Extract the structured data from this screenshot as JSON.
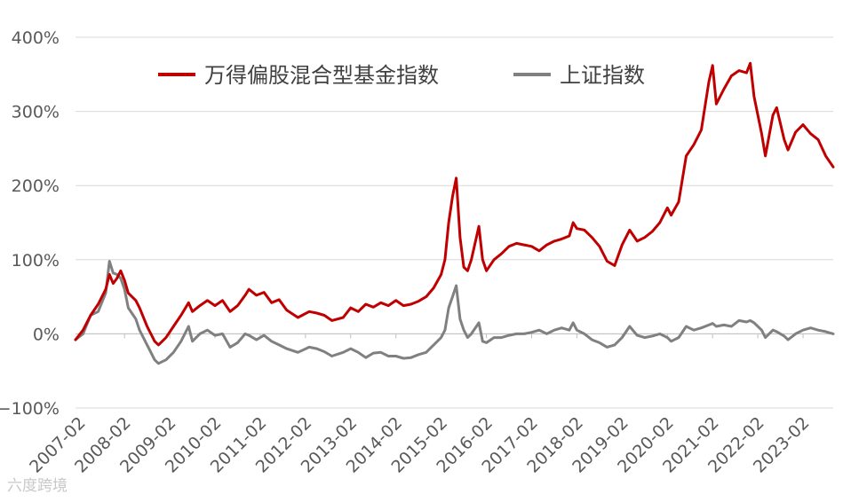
{
  "chart_data": {
    "type": "line",
    "title": "",
    "xlabel": "",
    "ylabel": "",
    "y_unit": "%",
    "ylim": [
      -100,
      400
    ],
    "yticks": [
      "400%",
      "300%",
      "200%",
      "100%",
      "0%",
      "−100%"
    ],
    "ytick_values": [
      400,
      300,
      200,
      100,
      0,
      -100
    ],
    "xlim": [
      "2007-01",
      "2023-10"
    ],
    "xticks": [
      "2007-02",
      "2008-02",
      "2009-02",
      "2010-02",
      "2011-02",
      "2012-02",
      "2013-02",
      "2014-02",
      "2015-02",
      "2016-02",
      "2017-02",
      "2018-02",
      "2019-02",
      "2020-02",
      "2021-02",
      "2022-02",
      "2023-02"
    ],
    "grid": true,
    "legend_position": "top",
    "series": [
      {
        "name": "万得偏股混合型基金指数",
        "color": "#c00000",
        "points": [
          [
            "2007-01",
            -8
          ],
          [
            "2007-03",
            5
          ],
          [
            "2007-05",
            25
          ],
          [
            "2007-07",
            40
          ],
          [
            "2007-09",
            60
          ],
          [
            "2007-10",
            80
          ],
          [
            "2007-11",
            68
          ],
          [
            "2007-12",
            75
          ],
          [
            "2008-01",
            85
          ],
          [
            "2008-02",
            72
          ],
          [
            "2008-03",
            55
          ],
          [
            "2008-05",
            45
          ],
          [
            "2008-06",
            35
          ],
          [
            "2008-08",
            10
          ],
          [
            "2008-10",
            -10
          ],
          [
            "2008-11",
            -15
          ],
          [
            "2009-01",
            -5
          ],
          [
            "2009-03",
            10
          ],
          [
            "2009-05",
            25
          ],
          [
            "2009-07",
            42
          ],
          [
            "2009-08",
            30
          ],
          [
            "2009-10",
            38
          ],
          [
            "2009-12",
            45
          ],
          [
            "2010-02",
            38
          ],
          [
            "2010-04",
            45
          ],
          [
            "2010-06",
            30
          ],
          [
            "2010-08",
            38
          ],
          [
            "2010-10",
            52
          ],
          [
            "2010-11",
            60
          ],
          [
            "2011-01",
            52
          ],
          [
            "2011-03",
            56
          ],
          [
            "2011-05",
            42
          ],
          [
            "2011-07",
            46
          ],
          [
            "2011-09",
            32
          ],
          [
            "2011-12",
            22
          ],
          [
            "2012-03",
            30
          ],
          [
            "2012-05",
            28
          ],
          [
            "2012-07",
            25
          ],
          [
            "2012-09",
            18
          ],
          [
            "2012-12",
            22
          ],
          [
            "2013-02",
            35
          ],
          [
            "2013-04",
            30
          ],
          [
            "2013-06",
            40
          ],
          [
            "2013-08",
            36
          ],
          [
            "2013-10",
            42
          ],
          [
            "2013-12",
            38
          ],
          [
            "2014-02",
            45
          ],
          [
            "2014-04",
            38
          ],
          [
            "2014-06",
            40
          ],
          [
            "2014-08",
            44
          ],
          [
            "2014-10",
            50
          ],
          [
            "2014-12",
            62
          ],
          [
            "2015-02",
            80
          ],
          [
            "2015-03",
            100
          ],
          [
            "2015-04",
            150
          ],
          [
            "2015-05",
            185
          ],
          [
            "2015-06",
            210
          ],
          [
            "2015-07",
            130
          ],
          [
            "2015-08",
            90
          ],
          [
            "2015-09",
            85
          ],
          [
            "2015-10",
            100
          ],
          [
            "2015-12",
            145
          ],
          [
            "2016-01",
            100
          ],
          [
            "2016-02",
            85
          ],
          [
            "2016-04",
            100
          ],
          [
            "2016-06",
            108
          ],
          [
            "2016-08",
            118
          ],
          [
            "2016-10",
            122
          ],
          [
            "2016-12",
            120
          ],
          [
            "2017-02",
            118
          ],
          [
            "2017-04",
            112
          ],
          [
            "2017-06",
            120
          ],
          [
            "2017-08",
            125
          ],
          [
            "2017-10",
            128
          ],
          [
            "2017-12",
            132
          ],
          [
            "2018-01",
            150
          ],
          [
            "2018-02",
            142
          ],
          [
            "2018-04",
            140
          ],
          [
            "2018-06",
            130
          ],
          [
            "2018-08",
            118
          ],
          [
            "2018-10",
            98
          ],
          [
            "2018-12",
            92
          ],
          [
            "2019-02",
            120
          ],
          [
            "2019-04",
            140
          ],
          [
            "2019-06",
            125
          ],
          [
            "2019-08",
            130
          ],
          [
            "2019-10",
            138
          ],
          [
            "2019-12",
            150
          ],
          [
            "2020-02",
            170
          ],
          [
            "2020-03",
            160
          ],
          [
            "2020-05",
            178
          ],
          [
            "2020-07",
            240
          ],
          [
            "2020-09",
            255
          ],
          [
            "2020-11",
            275
          ],
          [
            "2021-01",
            340
          ],
          [
            "2021-02",
            362
          ],
          [
            "2021-03",
            310
          ],
          [
            "2021-05",
            330
          ],
          [
            "2021-07",
            348
          ],
          [
            "2021-09",
            355
          ],
          [
            "2021-11",
            352
          ],
          [
            "2021-12",
            365
          ],
          [
            "2022-01",
            320
          ],
          [
            "2022-03",
            270
          ],
          [
            "2022-04",
            240
          ],
          [
            "2022-06",
            295
          ],
          [
            "2022-07",
            305
          ],
          [
            "2022-09",
            262
          ],
          [
            "2022-10",
            248
          ],
          [
            "2022-12",
            272
          ],
          [
            "2023-02",
            282
          ],
          [
            "2023-04",
            270
          ],
          [
            "2023-06",
            262
          ],
          [
            "2023-08",
            240
          ],
          [
            "2023-10",
            225
          ]
        ]
      },
      {
        "name": "上证指数",
        "color": "#808080",
        "points": [
          [
            "2007-01",
            -8
          ],
          [
            "2007-03",
            0
          ],
          [
            "2007-05",
            25
          ],
          [
            "2007-07",
            30
          ],
          [
            "2007-09",
            55
          ],
          [
            "2007-10",
            98
          ],
          [
            "2007-11",
            82
          ],
          [
            "2007-12",
            80
          ],
          [
            "2008-01",
            75
          ],
          [
            "2008-02",
            60
          ],
          [
            "2008-03",
            35
          ],
          [
            "2008-05",
            20
          ],
          [
            "2008-06",
            5
          ],
          [
            "2008-08",
            -15
          ],
          [
            "2008-10",
            -35
          ],
          [
            "2008-11",
            -40
          ],
          [
            "2009-01",
            -35
          ],
          [
            "2009-03",
            -25
          ],
          [
            "2009-05",
            -10
          ],
          [
            "2009-07",
            10
          ],
          [
            "2009-08",
            -10
          ],
          [
            "2009-10",
            0
          ],
          [
            "2009-12",
            5
          ],
          [
            "2010-02",
            -2
          ],
          [
            "2010-04",
            0
          ],
          [
            "2010-06",
            -18
          ],
          [
            "2010-08",
            -12
          ],
          [
            "2010-10",
            0
          ],
          [
            "2010-11",
            -2
          ],
          [
            "2011-01",
            -8
          ],
          [
            "2011-03",
            -2
          ],
          [
            "2011-05",
            -10
          ],
          [
            "2011-07",
            -15
          ],
          [
            "2011-09",
            -20
          ],
          [
            "2011-12",
            -25
          ],
          [
            "2012-03",
            -18
          ],
          [
            "2012-05",
            -20
          ],
          [
            "2012-07",
            -24
          ],
          [
            "2012-09",
            -30
          ],
          [
            "2012-12",
            -25
          ],
          [
            "2013-02",
            -20
          ],
          [
            "2013-04",
            -25
          ],
          [
            "2013-06",
            -32
          ],
          [
            "2013-08",
            -26
          ],
          [
            "2013-10",
            -25
          ],
          [
            "2013-12",
            -30
          ],
          [
            "2014-02",
            -30
          ],
          [
            "2014-04",
            -33
          ],
          [
            "2014-06",
            -32
          ],
          [
            "2014-08",
            -28
          ],
          [
            "2014-10",
            -25
          ],
          [
            "2014-12",
            -15
          ],
          [
            "2015-02",
            -5
          ],
          [
            "2015-03",
            5
          ],
          [
            "2015-04",
            35
          ],
          [
            "2015-05",
            50
          ],
          [
            "2015-06",
            65
          ],
          [
            "2015-07",
            20
          ],
          [
            "2015-08",
            5
          ],
          [
            "2015-09",
            -5
          ],
          [
            "2015-10",
            0
          ],
          [
            "2015-12",
            15
          ],
          [
            "2016-01",
            -10
          ],
          [
            "2016-02",
            -12
          ],
          [
            "2016-04",
            -5
          ],
          [
            "2016-06",
            -5
          ],
          [
            "2016-08",
            -2
          ],
          [
            "2016-10",
            0
          ],
          [
            "2016-12",
            0
          ],
          [
            "2017-02",
            2
          ],
          [
            "2017-04",
            5
          ],
          [
            "2017-06",
            0
          ],
          [
            "2017-08",
            5
          ],
          [
            "2017-10",
            8
          ],
          [
            "2017-12",
            5
          ],
          [
            "2018-01",
            15
          ],
          [
            "2018-02",
            5
          ],
          [
            "2018-04",
            0
          ],
          [
            "2018-06",
            -8
          ],
          [
            "2018-08",
            -12
          ],
          [
            "2018-10",
            -18
          ],
          [
            "2018-12",
            -15
          ],
          [
            "2019-02",
            -5
          ],
          [
            "2019-04",
            10
          ],
          [
            "2019-06",
            -2
          ],
          [
            "2019-08",
            -5
          ],
          [
            "2019-10",
            -3
          ],
          [
            "2019-12",
            0
          ],
          [
            "2020-02",
            -5
          ],
          [
            "2020-03",
            -10
          ],
          [
            "2020-05",
            -5
          ],
          [
            "2020-07",
            10
          ],
          [
            "2020-09",
            5
          ],
          [
            "2020-11",
            8
          ],
          [
            "2021-01",
            12
          ],
          [
            "2021-02",
            14
          ],
          [
            "2021-03",
            10
          ],
          [
            "2021-05",
            12
          ],
          [
            "2021-07",
            10
          ],
          [
            "2021-09",
            18
          ],
          [
            "2021-11",
            16
          ],
          [
            "2021-12",
            18
          ],
          [
            "2022-01",
            15
          ],
          [
            "2022-03",
            5
          ],
          [
            "2022-04",
            -5
          ],
          [
            "2022-06",
            5
          ],
          [
            "2022-07",
            3
          ],
          [
            "2022-09",
            -3
          ],
          [
            "2022-10",
            -8
          ],
          [
            "2022-12",
            0
          ],
          [
            "2023-02",
            5
          ],
          [
            "2023-04",
            8
          ],
          [
            "2023-06",
            5
          ],
          [
            "2023-08",
            3
          ],
          [
            "2023-10",
            0
          ]
        ]
      }
    ]
  },
  "watermark": "六度跨境"
}
